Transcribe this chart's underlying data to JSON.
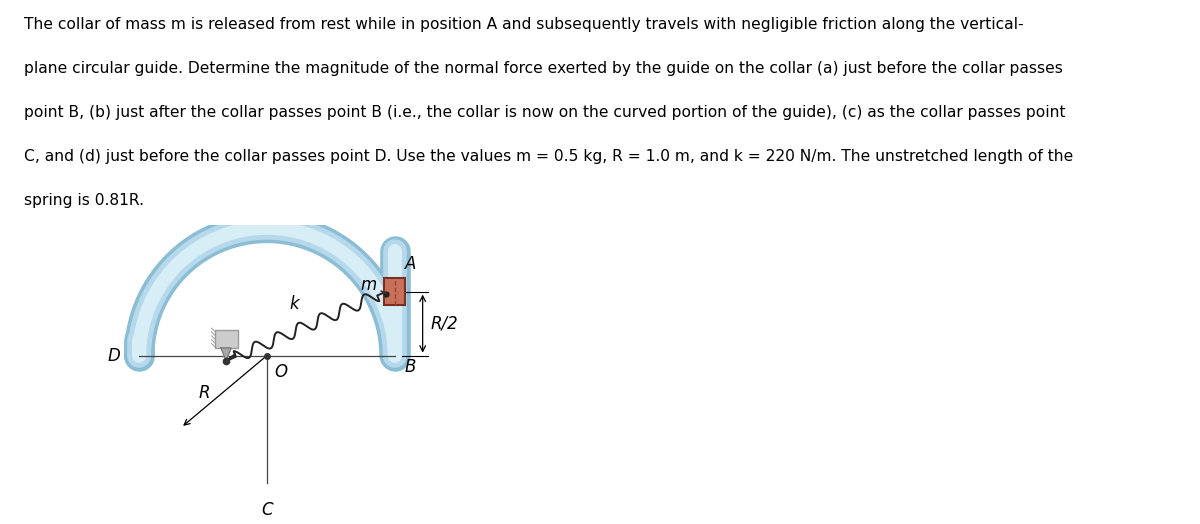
{
  "text_lines": [
    "The collar of mass m is released from rest while in position A and subsequently travels with negligible friction along the vertical-",
    "plane circular guide. Determine the magnitude of the normal force exerted by the guide on the collar (a) just before the collar passes",
    "point B, (b) just after the collar passes point B (i.e., the collar is now on the curved portion of the guide), (c) as the collar passes point",
    "C, and (d) just before the collar passes point D. Use the values m = 0.5 kg, R = 1.0 m, and k = 220 N/m. The unstretched length of the",
    "spring is 0.81R."
  ],
  "bg_color": "#ffffff",
  "guide_outer_color": "#8bbdd4",
  "guide_mid_color": "#b5d8ea",
  "guide_inner_color": "#d8eef7",
  "guide_linewidth_outer": 22,
  "guide_linewidth_mid": 17,
  "guide_linewidth_inner": 10,
  "collar_face": "#c8705a",
  "collar_edge": "#7a3020",
  "collar_dash": "#9a4030",
  "wall_face": "#cccccc",
  "wall_edge": "#999999",
  "spring_color": "#222222",
  "label_fontsize": 12,
  "text_fontsize": 11.2,
  "italic_labels": [
    "A",
    "B",
    "C",
    "D",
    "O",
    "R",
    "m",
    "k"
  ],
  "bold_text_vars": [
    "m",
    "R",
    "k"
  ]
}
